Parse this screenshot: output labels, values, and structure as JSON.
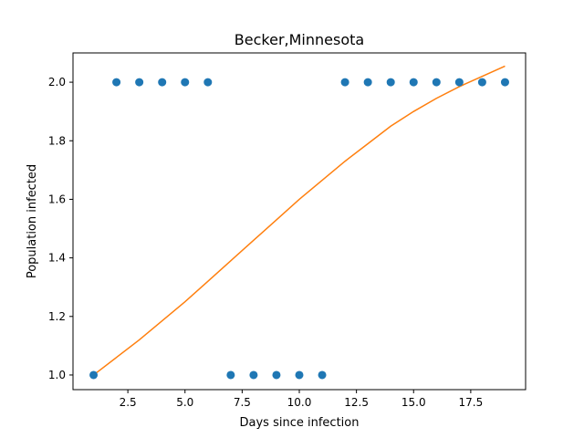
{
  "chart_data": {
    "type": "scatter",
    "title": "Becker,Minnesota",
    "xlabel": "Days since infection",
    "ylabel": "Population infected",
    "xlim": [
      0.1,
      19.9
    ],
    "ylim": [
      0.95,
      2.1
    ],
    "xticks": [
      2.5,
      5.0,
      7.5,
      10.0,
      12.5,
      15.0,
      17.5
    ],
    "xtick_labels": [
      "2.5",
      "5.0",
      "7.5",
      "10.0",
      "12.5",
      "15.0",
      "17.5"
    ],
    "yticks": [
      1.0,
      1.2,
      1.4,
      1.6,
      1.8,
      2.0
    ],
    "ytick_labels": [
      "1.0",
      "1.2",
      "1.4",
      "1.6",
      "1.8",
      "2.0"
    ],
    "grid": false,
    "series": [
      {
        "type": "scatter",
        "color": "#1f77b4",
        "x": [
          1,
          2,
          3,
          4,
          5,
          6,
          7,
          8,
          9,
          10,
          11,
          12,
          13,
          14,
          15,
          16,
          17,
          18,
          19
        ],
        "y": [
          1,
          2,
          2,
          2,
          2,
          2,
          1,
          1,
          1,
          1,
          1,
          2,
          2,
          2,
          2,
          2,
          2,
          2,
          2
        ]
      },
      {
        "type": "line",
        "color": "#ff7f0e",
        "x": [
          1,
          2,
          3,
          4,
          5,
          6,
          7,
          8,
          9,
          10,
          11,
          12,
          13,
          14,
          15,
          16,
          17,
          18,
          19
        ],
        "y": [
          1.0,
          1.06,
          1.12,
          1.185,
          1.25,
          1.32,
          1.39,
          1.46,
          1.53,
          1.6,
          1.665,
          1.73,
          1.79,
          1.85,
          1.9,
          1.945,
          1.985,
          2.02,
          2.055
        ]
      }
    ]
  }
}
